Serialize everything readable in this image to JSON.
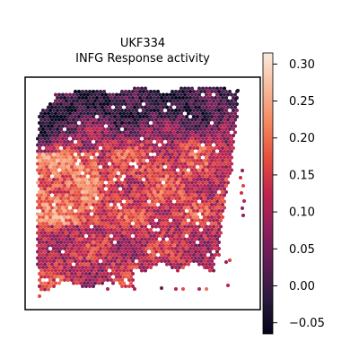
{
  "chart_data": {
    "type": "heatmap",
    "title_lines": [
      "UKF334",
      "INFG Response activity"
    ],
    "xlabel": "",
    "ylabel": "",
    "colorbar": {
      "colormap": "rocket",
      "range": [
        -0.065,
        0.315
      ],
      "ticks": [
        -0.05,
        0.0,
        0.05,
        0.1,
        0.15,
        0.2,
        0.25,
        0.3
      ],
      "tick_labels": [
        "−0.05",
        "0.00",
        "0.05",
        "0.10",
        "0.15",
        "0.20",
        "0.25",
        "0.30"
      ],
      "colors": [
        "#03051a",
        "#2b1a3c",
        "#5c1d53",
        "#8d1f5c",
        "#c0244f",
        "#e44f3d",
        "#f4875e",
        "#f7b99b",
        "#faebdd"
      ]
    },
    "regions": {
      "top_band": -0.02,
      "middle_left": 0.2,
      "center": 0.15,
      "lower": 0.12,
      "right_edge": 0.07
    },
    "grid": false,
    "legend": "colorbar-right"
  }
}
